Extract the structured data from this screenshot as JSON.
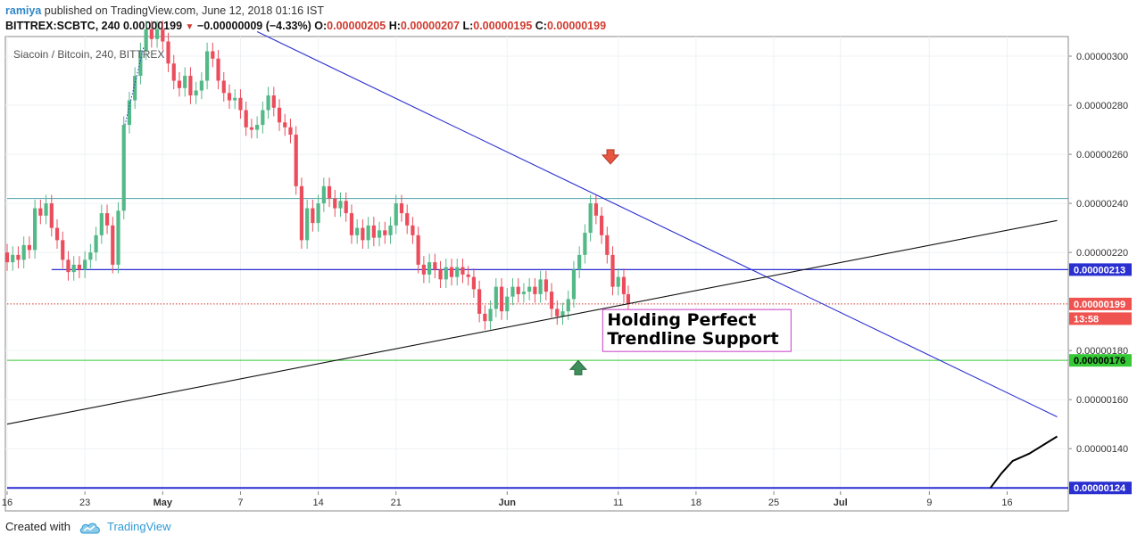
{
  "header": {
    "author": "ramiya",
    "published_text": "published on TradingView.com, June 12, 2018 01:16 IST",
    "symbol": "BITTREX:SCBTC, 240",
    "last": "0.00000199",
    "change": "−0.00000009 (−4.33%)",
    "open_label": "O:",
    "open": "0.00000205",
    "high_label": "H:",
    "high": "0.00000207",
    "low_label": "L:",
    "low": "0.00000195",
    "close_label": "C:",
    "close": "0.00000199"
  },
  "footer": {
    "created_with": "Created with",
    "brand": "TradingView"
  },
  "colors": {
    "bullish": "#53b987",
    "bearish": "#eb4d5c",
    "resistance_line": "#2a2fd0",
    "support_green": "#35c935",
    "teal_line": "#4aa0a8",
    "price_line": "#d03a2f",
    "annotation_border": "#c83cc8"
  },
  "chart_data": {
    "type": "candlestick",
    "title": "Siacoin / Bitcoin, 240, BITTREX",
    "ylim": [
      1.23e-06,
      3.08e-06
    ],
    "y_ticks": [
      "0.00000300",
      "0.00000280",
      "0.00000260",
      "0.00000240",
      "0.00000220",
      "0.00000180",
      "0.00000160",
      "0.00000140"
    ],
    "x_ticks": [
      {
        "label": "16",
        "day": 0
      },
      {
        "label": "23",
        "day": 7
      },
      {
        "label": "May",
        "day": 14
      },
      {
        "label": "7",
        "day": 21
      },
      {
        "label": "14",
        "day": 28
      },
      {
        "label": "21",
        "day": 35
      },
      {
        "label": "Jun",
        "day": 45
      },
      {
        "label": "11",
        "day": 55
      },
      {
        "label": "18",
        "day": 62
      },
      {
        "label": "25",
        "day": 69
      },
      {
        "label": "Jul",
        "day": 75
      },
      {
        "label": "9",
        "day": 83
      },
      {
        "label": "16",
        "day": 90
      }
    ],
    "price_badges": [
      {
        "value": "0.00000213",
        "price": 2.13e-06,
        "kind": "blue"
      },
      {
        "value": "0.00000199",
        "price": 1.99e-06,
        "kind": "red"
      },
      {
        "value": "13:58",
        "price": 1.93e-06,
        "kind": "red"
      },
      {
        "value": "0.00000176",
        "price": 1.76e-06,
        "kind": "green"
      },
      {
        "value": "0.00000124",
        "price": 1.24e-06,
        "kind": "blue"
      }
    ],
    "horizontal_lines": [
      {
        "price": 2.42e-06,
        "kind": "teal",
        "from_day": 0
      },
      {
        "price": 2.13e-06,
        "kind": "blue",
        "from_day": 4
      },
      {
        "price": 1.99e-06,
        "kind": "red_dotted",
        "from_day": 0
      },
      {
        "price": 1.76e-06,
        "kind": "green",
        "from_day": 0
      },
      {
        "price": 1.24e-06,
        "kind": "blue",
        "from_day": 0
      }
    ],
    "trendlines": [
      {
        "kind": "blue",
        "from": {
          "day": 22.5,
          "price": 3.1e-06
        },
        "to": {
          "day": 94.5,
          "price": 1.53e-06
        }
      },
      {
        "kind": "black",
        "from": {
          "day": 0,
          "price": 1.5e-06
        },
        "to": {
          "day": 94.5,
          "price": 2.33e-06
        }
      }
    ],
    "curve": [
      {
        "day": 88.5,
        "price": 1.24e-06
      },
      {
        "day": 89.5,
        "price": 1.3e-06
      },
      {
        "day": 90.5,
        "price": 1.35e-06
      },
      {
        "day": 92,
        "price": 1.38e-06
      },
      {
        "day": 94.5,
        "price": 1.45e-06
      }
    ],
    "markers": [
      {
        "kind": "down",
        "day": 54.3,
        "price": 2.59e-06
      },
      {
        "kind": "up",
        "day": 51.4,
        "price": 1.73e-06
      }
    ],
    "annotation": {
      "line1": "Holding Perfect",
      "line2": "Trendline Support",
      "day": 53.6,
      "price": 1.92e-06
    },
    "candles": [
      {
        "day": 0.0,
        "o": 2.2,
        "c": 2.16
      },
      {
        "day": 0.5,
        "o": 2.16,
        "c": 2.19
      },
      {
        "day": 1.0,
        "o": 2.19,
        "c": 2.17
      },
      {
        "day": 1.5,
        "o": 2.17,
        "c": 2.23
      },
      {
        "day": 2.0,
        "o": 2.23,
        "c": 2.21
      },
      {
        "day": 2.5,
        "o": 2.21,
        "c": 2.38
      },
      {
        "day": 3.0,
        "o": 2.38,
        "c": 2.35
      },
      {
        "day": 3.5,
        "o": 2.35,
        "c": 2.4
      },
      {
        "day": 4.0,
        "o": 2.4,
        "c": 2.3
      },
      {
        "day": 4.5,
        "o": 2.3,
        "c": 2.25
      },
      {
        "day": 5.0,
        "o": 2.25,
        "c": 2.17
      },
      {
        "day": 5.5,
        "o": 2.17,
        "c": 2.12
      },
      {
        "day": 6.0,
        "o": 2.12,
        "c": 2.15
      },
      {
        "day": 6.5,
        "o": 2.15,
        "c": 2.13
      },
      {
        "day": 7.0,
        "o": 2.13,
        "c": 2.17
      },
      {
        "day": 7.5,
        "o": 2.17,
        "c": 2.2
      },
      {
        "day": 8.0,
        "o": 2.2,
        "c": 2.27
      },
      {
        "day": 8.5,
        "o": 2.27,
        "c": 2.36
      },
      {
        "day": 9.0,
        "o": 2.36,
        "c": 2.31
      },
      {
        "day": 9.5,
        "o": 2.31,
        "c": 2.15
      },
      {
        "day": 10.0,
        "o": 2.15,
        "c": 2.37
      },
      {
        "day": 10.5,
        "o": 2.37,
        "c": 2.72
      },
      {
        "day": 11.0,
        "o": 2.72,
        "c": 2.82
      },
      {
        "day": 11.5,
        "o": 2.82,
        "c": 2.92
      },
      {
        "day": 12.0,
        "o": 2.92,
        "c": 3.02
      },
      {
        "day": 12.5,
        "o": 3.02,
        "c": 3.11
      },
      {
        "day": 13.0,
        "o": 3.11,
        "c": 3.07
      },
      {
        "day": 13.5,
        "o": 3.07,
        "c": 3.11
      },
      {
        "day": 14.0,
        "o": 3.11,
        "c": 3.06
      },
      {
        "day": 14.5,
        "o": 3.06,
        "c": 2.97
      },
      {
        "day": 15.0,
        "o": 2.97,
        "c": 2.9
      },
      {
        "day": 15.5,
        "o": 2.9,
        "c": 2.87
      },
      {
        "day": 16.0,
        "o": 2.87,
        "c": 2.92
      },
      {
        "day": 16.5,
        "o": 2.92,
        "c": 2.84
      },
      {
        "day": 17.0,
        "o": 2.84,
        "c": 2.86
      },
      {
        "day": 17.5,
        "o": 2.86,
        "c": 2.9
      },
      {
        "day": 18.0,
        "o": 2.9,
        "c": 3.02
      },
      {
        "day": 18.5,
        "o": 3.02,
        "c": 2.99
      },
      {
        "day": 19.0,
        "o": 2.99,
        "c": 2.9
      },
      {
        "day": 19.5,
        "o": 2.9,
        "c": 2.85
      },
      {
        "day": 20.0,
        "o": 2.85,
        "c": 2.82
      },
      {
        "day": 20.5,
        "o": 2.82,
        "c": 2.83
      },
      {
        "day": 21.0,
        "o": 2.83,
        "c": 2.78
      },
      {
        "day": 21.5,
        "o": 2.78,
        "c": 2.71
      },
      {
        "day": 22.0,
        "o": 2.71,
        "c": 2.7
      },
      {
        "day": 22.5,
        "o": 2.7,
        "c": 2.72
      },
      {
        "day": 23.0,
        "o": 2.72,
        "c": 2.78
      },
      {
        "day": 23.5,
        "o": 2.78,
        "c": 2.84
      },
      {
        "day": 24.0,
        "o": 2.84,
        "c": 2.79
      },
      {
        "day": 24.5,
        "o": 2.79,
        "c": 2.73
      },
      {
        "day": 25.0,
        "o": 2.73,
        "c": 2.71
      },
      {
        "day": 25.5,
        "o": 2.71,
        "c": 2.68
      },
      {
        "day": 26.0,
        "o": 2.68,
        "c": 2.47
      },
      {
        "day": 26.5,
        "o": 2.47,
        "c": 2.25
      },
      {
        "day": 27.0,
        "o": 2.25,
        "c": 2.38
      },
      {
        "day": 27.5,
        "o": 2.38,
        "c": 2.32
      },
      {
        "day": 28.0,
        "o": 2.32,
        "c": 2.4
      },
      {
        "day": 28.5,
        "o": 2.4,
        "c": 2.47
      },
      {
        "day": 29.0,
        "o": 2.47,
        "c": 2.42
      },
      {
        "day": 29.5,
        "o": 2.42,
        "c": 2.38
      },
      {
        "day": 30.0,
        "o": 2.38,
        "c": 2.41
      },
      {
        "day": 30.5,
        "o": 2.41,
        "c": 2.36
      },
      {
        "day": 31.0,
        "o": 2.36,
        "c": 2.27
      },
      {
        "day": 31.5,
        "o": 2.27,
        "c": 2.3
      },
      {
        "day": 32.0,
        "o": 2.3,
        "c": 2.25
      },
      {
        "day": 32.5,
        "o": 2.25,
        "c": 2.31
      },
      {
        "day": 33.0,
        "o": 2.31,
        "c": 2.26
      },
      {
        "day": 33.5,
        "o": 2.26,
        "c": 2.29
      },
      {
        "day": 34.0,
        "o": 2.29,
        "c": 2.27
      },
      {
        "day": 34.5,
        "o": 2.27,
        "c": 2.31
      },
      {
        "day": 35.0,
        "o": 2.31,
        "c": 2.4
      },
      {
        "day": 35.5,
        "o": 2.4,
        "c": 2.36
      },
      {
        "day": 36.0,
        "o": 2.36,
        "c": 2.31
      },
      {
        "day": 36.5,
        "o": 2.31,
        "c": 2.27
      },
      {
        "day": 37.0,
        "o": 2.27,
        "c": 2.15
      },
      {
        "day": 37.5,
        "o": 2.15,
        "c": 2.11
      },
      {
        "day": 38.0,
        "o": 2.11,
        "c": 2.16
      },
      {
        "day": 38.5,
        "o": 2.16,
        "c": 2.13
      },
      {
        "day": 39.0,
        "o": 2.13,
        "c": 2.09
      },
      {
        "day": 39.5,
        "o": 2.09,
        "c": 2.14
      },
      {
        "day": 40.0,
        "o": 2.14,
        "c": 2.1
      },
      {
        "day": 40.5,
        "o": 2.1,
        "c": 2.14
      },
      {
        "day": 41.0,
        "o": 2.14,
        "c": 2.11
      },
      {
        "day": 41.5,
        "o": 2.11,
        "c": 2.1
      },
      {
        "day": 42.0,
        "o": 2.1,
        "c": 2.05
      },
      {
        "day": 42.5,
        "o": 2.05,
        "c": 1.95
      },
      {
        "day": 43.0,
        "o": 1.95,
        "c": 1.92
      },
      {
        "day": 43.5,
        "o": 1.92,
        "c": 1.97
      },
      {
        "day": 44.0,
        "o": 1.97,
        "c": 2.06
      },
      {
        "day": 44.5,
        "o": 2.06,
        "c": 1.96
      },
      {
        "day": 45.0,
        "o": 1.96,
        "c": 2.02
      },
      {
        "day": 45.5,
        "o": 2.02,
        "c": 2.06
      },
      {
        "day": 46.0,
        "o": 2.06,
        "c": 2.03
      },
      {
        "day": 46.5,
        "o": 2.03,
        "c": 2.04
      },
      {
        "day": 47.0,
        "o": 2.04,
        "c": 2.06
      },
      {
        "day": 47.5,
        "o": 2.06,
        "c": 2.03
      },
      {
        "day": 48.0,
        "o": 2.03,
        "c": 2.09
      },
      {
        "day": 48.5,
        "o": 2.09,
        "c": 2.04
      },
      {
        "day": 49.0,
        "o": 2.04,
        "c": 1.97
      },
      {
        "day": 49.5,
        "o": 1.97,
        "c": 1.94
      },
      {
        "day": 50.0,
        "o": 1.94,
        "c": 1.96
      },
      {
        "day": 50.5,
        "o": 1.96,
        "c": 2.01
      },
      {
        "day": 51.0,
        "o": 2.01,
        "c": 2.13
      },
      {
        "day": 51.5,
        "o": 2.13,
        "c": 2.19
      },
      {
        "day": 52.0,
        "o": 2.19,
        "c": 2.28
      },
      {
        "day": 52.5,
        "o": 2.28,
        "c": 2.4
      },
      {
        "day": 53.0,
        "o": 2.4,
        "c": 2.35
      },
      {
        "day": 53.5,
        "o": 2.35,
        "c": 2.27
      },
      {
        "day": 54.0,
        "o": 2.27,
        "c": 2.19
      },
      {
        "day": 54.5,
        "o": 2.19,
        "c": 2.06
      },
      {
        "day": 55.0,
        "o": 2.06,
        "c": 2.1
      },
      {
        "day": 55.5,
        "o": 2.1,
        "c": 2.03
      },
      {
        "day": 55.9,
        "o": 2.03,
        "c": 1.99
      }
    ]
  }
}
